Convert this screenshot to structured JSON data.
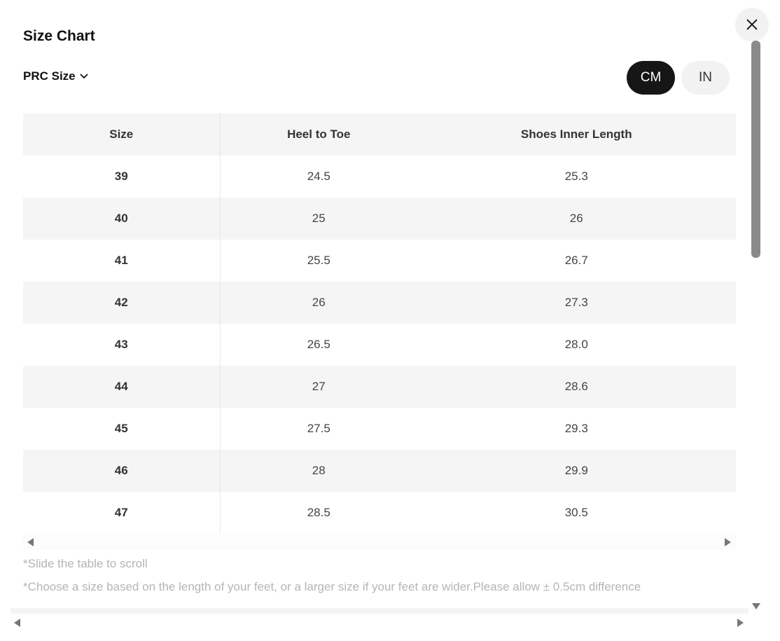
{
  "title": "Size Chart",
  "size_system": {
    "label": "PRC Size",
    "icon": "chevron-down-icon"
  },
  "units": [
    {
      "label": "CM",
      "active": true
    },
    {
      "label": "IN",
      "active": false
    }
  ],
  "close_icon": "close-icon",
  "table": {
    "headers": [
      "Size",
      "Heel to Toe",
      "Shoes Inner Length"
    ],
    "rows": [
      [
        "39",
        "24.5",
        "25.3"
      ],
      [
        "40",
        "25",
        "26"
      ],
      [
        "41",
        "25.5",
        "26.7"
      ],
      [
        "42",
        "26",
        "27.3"
      ],
      [
        "43",
        "26.5",
        "28.0"
      ],
      [
        "44",
        "27",
        "28.6"
      ],
      [
        "45",
        "27.5",
        "29.3"
      ],
      [
        "46",
        "28",
        "29.9"
      ],
      [
        "47",
        "28.5",
        "30.5"
      ]
    ]
  },
  "notes": {
    "scroll": "*Slide the table to scroll",
    "advice": "*Choose a size based on the length of your feet, or a larger size if your feet are wider.Please allow ± 0.5cm difference"
  }
}
